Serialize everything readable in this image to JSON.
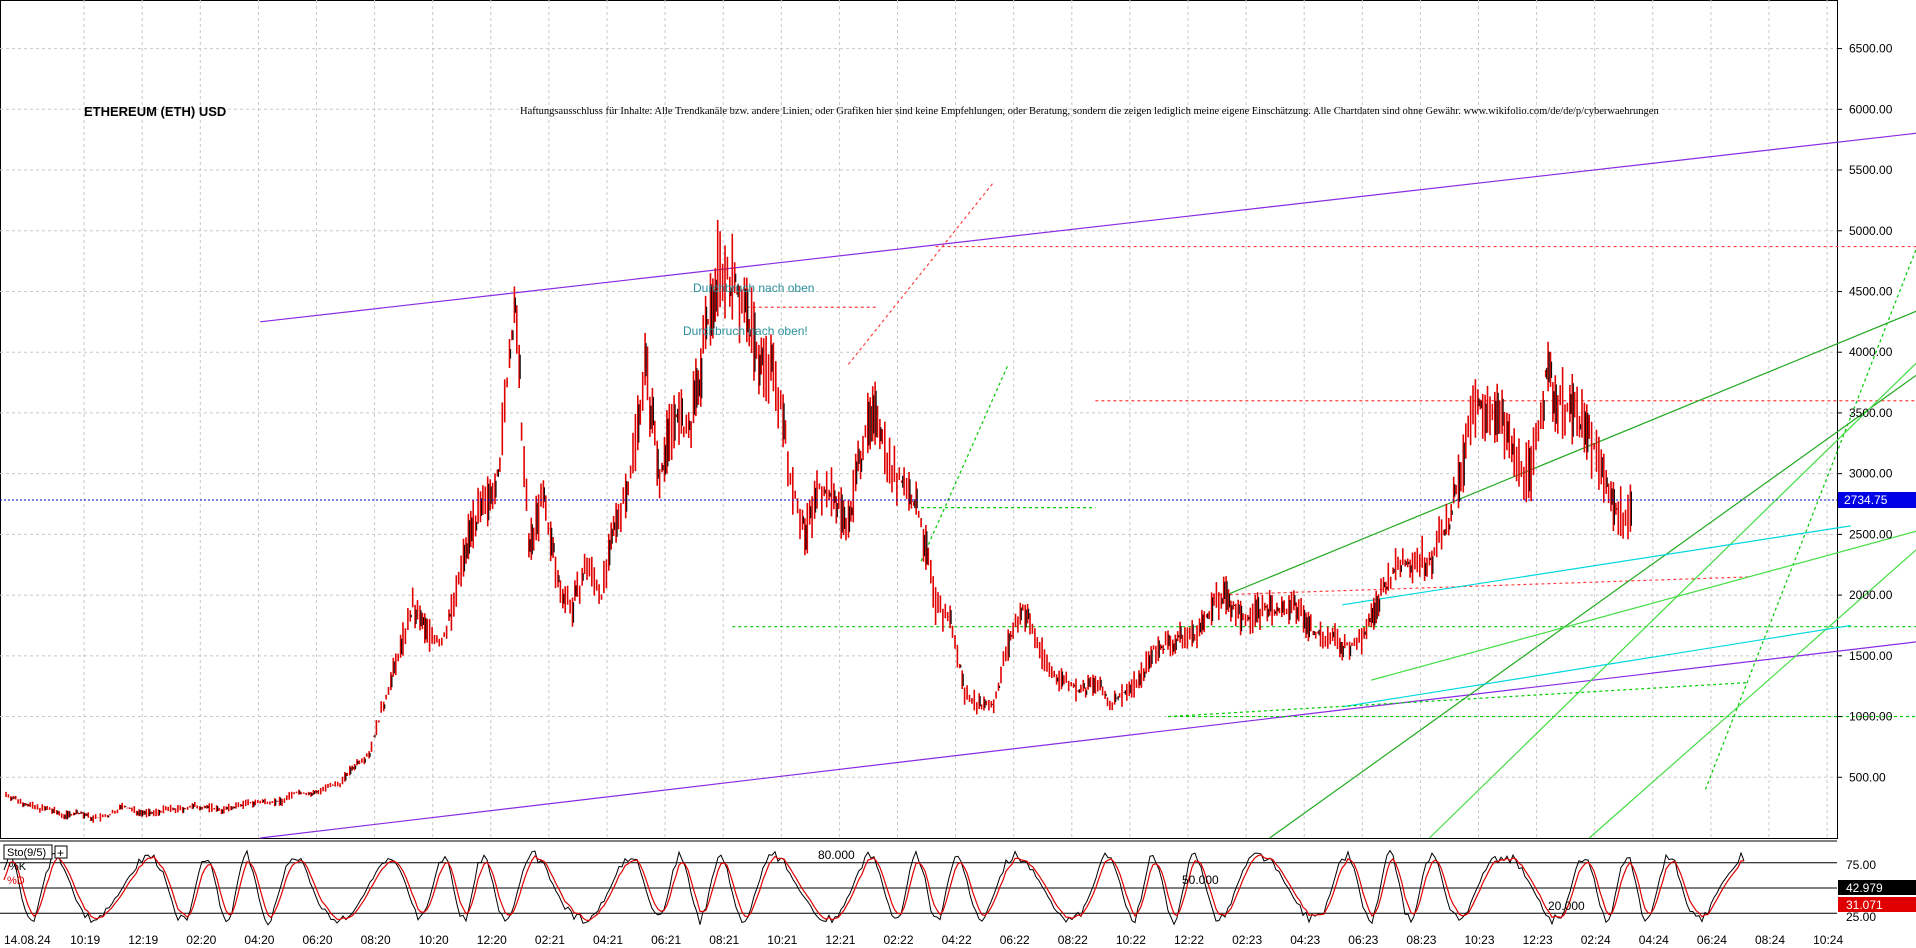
{
  "chart_data": {
    "type": "candlestick",
    "title": "ETHEREUM (ETH) USD",
    "disclaimer": "Haftungsausschluss für Inhalte: Alle Trendkanäle bzw. andere Linien, oder Grafiken hier sind keine Empfehlungen, oder Beratung, sondern die zeigen lediglich meine eigene Einschätzung. Alle Chartdaten sind ohne Gewähr.  www.wikifolio.com/de/de/p/cyberwaehrungen",
    "annotations": [
      "Durchbruch nach oben",
      "Durchbruch nach oben!"
    ],
    "current_price_label": "2734.75",
    "current_price": 2734.75,
    "ylim": [
      0,
      6900
    ],
    "y_tick_labels": [
      "500.00",
      "1000.00",
      "1500.00",
      "2000.00",
      "2500.00",
      "3000.00",
      "3500.00",
      "4000.00",
      "4500.00",
      "5000.00",
      "5500.00",
      "6000.00",
      "6500.00"
    ],
    "x_tick_labels": [
      "14.08.24",
      "10:19",
      "12:19",
      "02:20",
      "04:20",
      "06:20",
      "08:20",
      "10:20",
      "12:20",
      "02:21",
      "04:21",
      "06:21",
      "08:21",
      "10:21",
      "12:21",
      "02:22",
      "04:22",
      "06:22",
      "08:22",
      "10:22",
      "12:22",
      "02:23",
      "04:23",
      "06:23",
      "08:23",
      "10:23",
      "12:23",
      "02:24",
      "04:24",
      "06:24",
      "08:24",
      "10:24"
    ],
    "price_path": [
      [
        0,
        360
      ],
      [
        1,
        300
      ],
      [
        2,
        250
      ],
      [
        3,
        235
      ],
      [
        4,
        185
      ],
      [
        5,
        210
      ],
      [
        6,
        160
      ],
      [
        7,
        180
      ],
      [
        8,
        260
      ],
      [
        9,
        220
      ],
      [
        10,
        200
      ],
      [
        11,
        235
      ],
      [
        12,
        235
      ],
      [
        13,
        260
      ],
      [
        14,
        250
      ],
      [
        15,
        230
      ],
      [
        16,
        270
      ],
      [
        17,
        290
      ],
      [
        18,
        300
      ],
      [
        19,
        300
      ],
      [
        20,
        380
      ],
      [
        21,
        360
      ],
      [
        22,
        410
      ],
      [
        23,
        450
      ],
      [
        24,
        600
      ],
      [
        25,
        700
      ],
      [
        26,
        1100
      ],
      [
        27,
        1500
      ],
      [
        28,
        1900
      ],
      [
        29,
        1700
      ],
      [
        30,
        1600
      ],
      [
        31,
        2000
      ],
      [
        32,
        2600
      ],
      [
        33,
        2700
      ],
      [
        34,
        3100
      ],
      [
        35,
        4400
      ],
      [
        36,
        2400
      ],
      [
        37,
        2800
      ],
      [
        38,
        2100
      ],
      [
        39,
        1900
      ],
      [
        40,
        2250
      ],
      [
        41,
        2000
      ],
      [
        42,
        2600
      ],
      [
        43,
        3000
      ],
      [
        44,
        3900
      ],
      [
        45,
        3000
      ],
      [
        46,
        3500
      ],
      [
        47,
        3300
      ],
      [
        48,
        4000
      ],
      [
        49,
        4700
      ],
      [
        50,
        4600
      ],
      [
        51,
        4300
      ],
      [
        52,
        3900
      ],
      [
        53,
        3800
      ],
      [
        54,
        3000
      ],
      [
        55,
        2500
      ],
      [
        56,
        2900
      ],
      [
        57,
        2800
      ],
      [
        58,
        2600
      ],
      [
        59,
        3300
      ],
      [
        60,
        3500
      ],
      [
        61,
        3000
      ],
      [
        62,
        2900
      ],
      [
        63,
        2600
      ],
      [
        64,
        1900
      ],
      [
        65,
        1800
      ],
      [
        66,
        1200
      ],
      [
        67,
        1100
      ],
      [
        68,
        1100
      ],
      [
        69,
        1600
      ],
      [
        70,
        1900
      ],
      [
        71,
        1600
      ],
      [
        72,
        1350
      ],
      [
        73,
        1300
      ],
      [
        74,
        1200
      ],
      [
        75,
        1280
      ],
      [
        76,
        1100
      ],
      [
        77,
        1200
      ],
      [
        78,
        1300
      ],
      [
        79,
        1550
      ],
      [
        80,
        1600
      ],
      [
        81,
        1650
      ],
      [
        82,
        1680
      ],
      [
        83,
        1900
      ],
      [
        84,
        2000
      ],
      [
        85,
        1800
      ],
      [
        86,
        1850
      ],
      [
        87,
        1900
      ],
      [
        88,
        1850
      ],
      [
        89,
        1900
      ],
      [
        90,
        1700
      ],
      [
        91,
        1650
      ],
      [
        92,
        1600
      ],
      [
        93,
        1580
      ],
      [
        94,
        1800
      ],
      [
        95,
        2100
      ],
      [
        96,
        2250
      ],
      [
        97,
        2300
      ],
      [
        98,
        2300
      ],
      [
        99,
        2500
      ],
      [
        100,
        2900
      ],
      [
        101,
        3500
      ],
      [
        102,
        3600
      ],
      [
        103,
        3400
      ],
      [
        104,
        3100
      ],
      [
        105,
        3000
      ],
      [
        106,
        3800
      ],
      [
        107,
        3600
      ],
      [
        108,
        3500
      ],
      [
        109,
        3300
      ],
      [
        110,
        3000
      ],
      [
        111,
        2650
      ],
      [
        112,
        2730
      ]
    ],
    "price_x_range": [
      0,
      112
    ],
    "trend_lines": [
      {
        "color": "#8a2be2",
        "from": [
          17.5,
          4250
        ],
        "to": [
          146,
          6000
        ]
      },
      {
        "color": "#8a2be2",
        "from": [
          17.5,
          0
        ],
        "to": [
          146,
          1820
        ]
      },
      {
        "color": "#ff4040",
        "dash": true,
        "from": [
          64,
          4870
        ],
        "to": [
          146,
          4870
        ]
      },
      {
        "color": "#ff4040",
        "dash": true,
        "from": [
          51,
          4370
        ],
        "to": [
          60,
          4370
        ]
      },
      {
        "color": "#ff4040",
        "dash": true,
        "from": [
          75,
          3600
        ],
        "to": [
          146,
          3600
        ]
      },
      {
        "color": "#ff4040",
        "dash": true,
        "from": [
          83,
          2000
        ],
        "to": [
          120,
          2150
        ]
      },
      {
        "color": "#00cc00",
        "dash": true,
        "from": [
          50,
          1740
        ],
        "to": [
          146,
          1740
        ]
      },
      {
        "color": "#00cc00",
        "dash": true,
        "from": [
          63,
          2720
        ],
        "to": [
          75,
          2720
        ]
      },
      {
        "color": "#00cc00",
        "dash": true,
        "from": [
          80,
          1000
        ],
        "to": [
          146,
          1000
        ]
      },
      {
        "color": "#00cc00",
        "dash": true,
        "from": [
          63,
          2280
        ],
        "to": [
          69,
          3900
        ]
      },
      {
        "color": "#00cc00",
        "dash": true,
        "from": [
          117,
          400
        ],
        "to": [
          132,
          5000
        ]
      },
      {
        "color": "#ff4040",
        "dash": true,
        "from": [
          58,
          3900
        ],
        "to": [
          68,
          5400
        ]
      },
      {
        "color": "#22aa22",
        "from": [
          87,
          0
        ],
        "to": [
          146,
          5050
        ]
      },
      {
        "color": "#22aa22",
        "from": [
          84,
          2000
        ],
        "to": [
          146,
          5050
        ]
      },
      {
        "color": "#44dd44",
        "from": [
          98,
          0
        ],
        "to": [
          146,
          5600
        ]
      },
      {
        "color": "#44dd44",
        "from": [
          109,
          0
        ],
        "to": [
          146,
          3900
        ]
      },
      {
        "color": "#44dd44",
        "from": [
          94,
          1300
        ],
        "to": [
          146,
          3000
        ]
      },
      {
        "color": "#00d8e0",
        "from": [
          92,
          1920
        ],
        "to": [
          127,
          2570
        ]
      },
      {
        "color": "#00d8e0",
        "from": [
          92,
          1080
        ],
        "to": [
          127,
          1750
        ]
      },
      {
        "color": "#00cc00",
        "dash": true,
        "from": [
          80,
          1000
        ],
        "to": [
          120,
          1280
        ]
      }
    ],
    "oscillator": {
      "name": "Sto(9/5)",
      "k_label": "%K",
      "d_label": "%D",
      "levels": [
        {
          "value": 80,
          "label": "80.000"
        },
        {
          "value": 50,
          "label": "50.000"
        },
        {
          "value": 20,
          "label": "20.000"
        }
      ],
      "axis_labels": [
        "75.00",
        "25.00"
      ],
      "k_value_label": "42.979",
      "k_value": 42.979,
      "d_value_label": "31.071",
      "d_value": 31.071
    }
  }
}
